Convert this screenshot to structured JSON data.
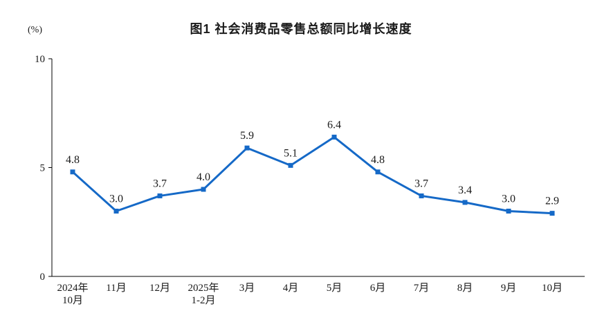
{
  "chart_data": {
    "type": "line",
    "title": "图1  社会消费品零售总额同比增长速度",
    "unit_label": "(%)",
    "categories": [
      [
        "2024年",
        "10月"
      ],
      [
        "11月"
      ],
      [
        "12月"
      ],
      [
        "2025年",
        "1-2月"
      ],
      [
        "3月"
      ],
      [
        "4月"
      ],
      [
        "5月"
      ],
      [
        "6月"
      ],
      [
        "7月"
      ],
      [
        "8月"
      ],
      [
        "9月"
      ],
      [
        "10月"
      ]
    ],
    "values": [
      4.8,
      3.0,
      3.7,
      4.0,
      5.9,
      5.1,
      6.4,
      4.8,
      3.7,
      3.4,
      3.0,
      2.9
    ],
    "value_label_format": "one-decimal",
    "ylim": [
      0,
      10
    ],
    "y_ticks": [
      0,
      5,
      10
    ],
    "xlabel": "",
    "ylabel": "(%)",
    "grid": false,
    "legend_position": "none",
    "line_color": "#1569c7",
    "marker": "square",
    "text_color": "#1a1a1a",
    "axis_color": "#000000"
  }
}
